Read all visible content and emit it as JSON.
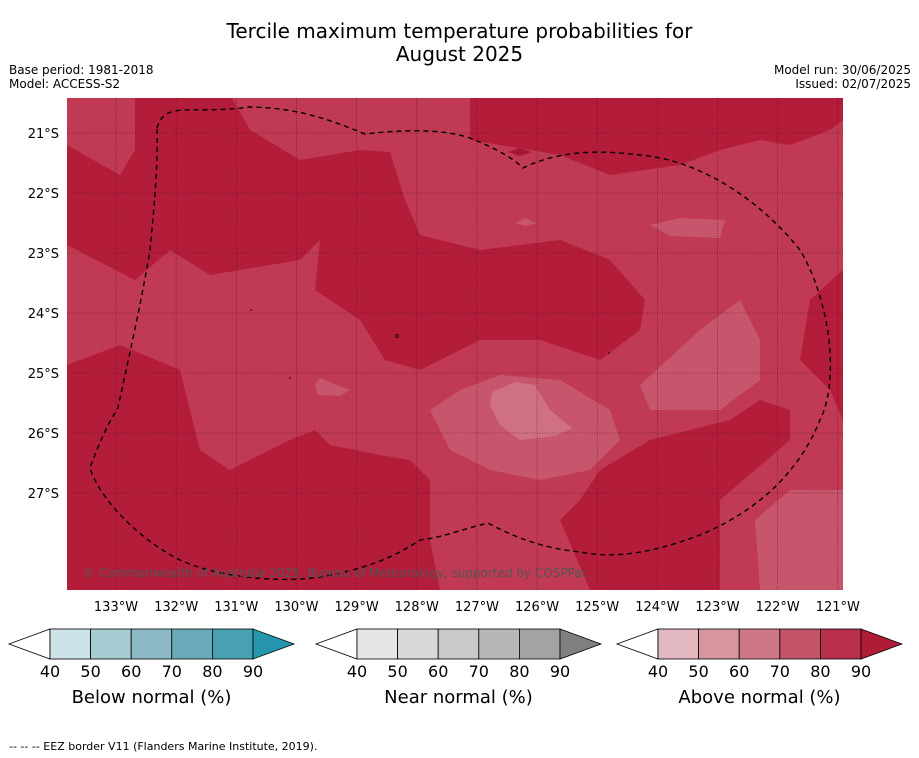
{
  "title_line1": "Tercile maximum temperature probabilities for",
  "title_line2": "August 2025",
  "base_period": "Base period: 1981-2018",
  "model": "Model: ACCESS-S2",
  "model_run": "Model run: 30/06/2025",
  "issued": "Issued: 02/07/2025",
  "copyright": "© Commonwealth of Australia 2025, Bureau of Meteorology, supported by COSPPac",
  "lat_labels": [
    "21°S",
    "22°S",
    "23°S",
    "24°S",
    "25°S",
    "26°S",
    "27°S"
  ],
  "lon_labels": [
    "133°W",
    "132°W",
    "131°W",
    "130°W",
    "129°W",
    "128°W",
    "127°W",
    "126°W",
    "125°W",
    "124°W",
    "123°W",
    "122°W",
    "121°W"
  ],
  "colorbars": [
    {
      "title": "Below normal (%)",
      "ticks": [
        "40",
        "50",
        "60",
        "70",
        "80",
        "90"
      ],
      "colors": [
        "#cce3e8",
        "#a8cbd2",
        "#8bbac6",
        "#6aabbb",
        "#48a0b1",
        "#2596ad"
      ]
    },
    {
      "title": "Near normal (%)",
      "ticks": [
        "40",
        "50",
        "60",
        "70",
        "80",
        "90"
      ],
      "colors": [
        "#e6e6e6",
        "#d8d8d8",
        "#c9c9c9",
        "#b7b7b7",
        "#a3a3a3",
        "#808080"
      ]
    },
    {
      "title": "Above normal (%)",
      "ticks": [
        "40",
        "50",
        "60",
        "70",
        "80",
        "90"
      ],
      "colors": [
        "#e2b8c0",
        "#d7959f",
        "#cd7884",
        "#c45468",
        "#b9304a",
        "#b01c38"
      ]
    }
  ],
  "map_colors": {
    "base": "#b31d3a",
    "mid": "#bf3a52",
    "light": "#c7556b",
    "lighter": "#cf7182"
  },
  "footer": "--  --  -- EEZ border V11 (Flanders Marine Institute, 2019)."
}
